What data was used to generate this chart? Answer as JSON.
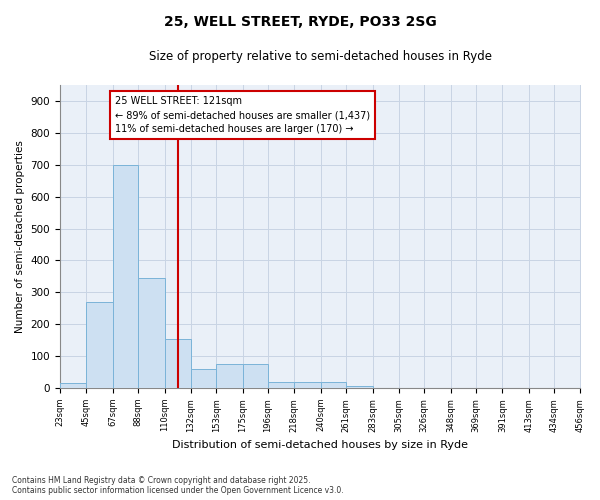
{
  "title_line1": "25, WELL STREET, RYDE, PO33 2SG",
  "title_line2": "Size of property relative to semi-detached houses in Ryde",
  "xlabel": "Distribution of semi-detached houses by size in Ryde",
  "ylabel": "Number of semi-detached properties",
  "annotation_line1": "25 WELL STREET: 121sqm",
  "annotation_line2": "← 89% of semi-detached houses are smaller (1,437)",
  "annotation_line3": "11% of semi-detached houses are larger (170) →",
  "property_line_x": 121,
  "bin_edges": [
    23,
    45,
    67,
    88,
    110,
    132,
    153,
    175,
    196,
    218,
    240,
    261,
    283,
    305,
    326,
    348,
    369,
    391,
    413,
    434,
    456
  ],
  "bar_heights": [
    15,
    270,
    700,
    345,
    155,
    60,
    75,
    75,
    20,
    20,
    20,
    5,
    0,
    0,
    0,
    0,
    0,
    0,
    0,
    0
  ],
  "bar_color": "#cde0f2",
  "bar_edge_color": "#7ab3d8",
  "grid_color": "#c8d4e4",
  "bg_color": "#eaf0f8",
  "vline_color": "#cc0000",
  "annotation_box_edgecolor": "#cc0000",
  "footer_line1": "Contains HM Land Registry data © Crown copyright and database right 2025.",
  "footer_line2": "Contains public sector information licensed under the Open Government Licence v3.0.",
  "ylim": [
    0,
    950
  ],
  "yticks": [
    0,
    100,
    200,
    300,
    400,
    500,
    600,
    700,
    800,
    900
  ]
}
